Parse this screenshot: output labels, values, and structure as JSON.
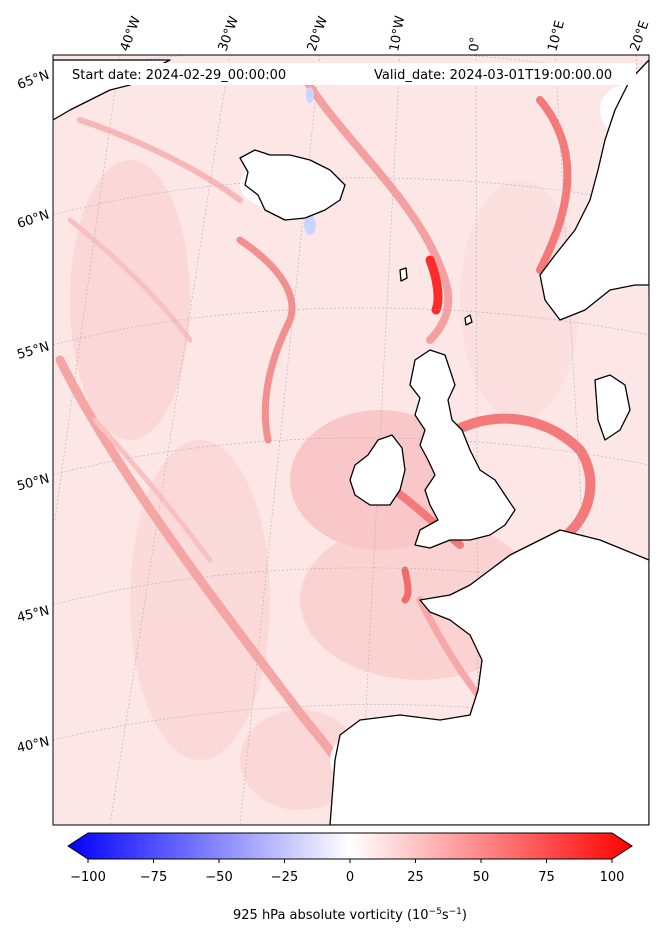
{
  "header": {
    "start_date": "Start date: 2024-02-29_00:00:00",
    "valid_date": "Valid_date: 2024-03-01T19:00:00.00"
  },
  "longitude_labels": [
    "40°W",
    "30°W",
    "20°W",
    "10°W",
    "0°",
    "10°E",
    "20°E"
  ],
  "latitude_labels": [
    "65°N",
    "60°N",
    "55°N",
    "50°N",
    "45°N",
    "40°N"
  ],
  "colorbar": {
    "vmin": -100,
    "vmax": 100,
    "ticks": [
      "−100",
      "−75",
      "−50",
      "−25",
      "0",
      "25",
      "50",
      "75",
      "100"
    ],
    "tick_values": [
      -100,
      -75,
      -50,
      -25,
      0,
      25,
      50,
      75,
      100
    ],
    "title": "925 hPa absolute vorticity (10",
    "title_exp1": "−5",
    "title_mid": "s",
    "title_exp2": "−1",
    "title_end": ")",
    "colors": {
      "neg": "#0000ff",
      "mid": "#ffffff",
      "pos": "#ff0000"
    }
  },
  "colors": {
    "field_base": "#fde6e6",
    "field_light": "#fbd0d0",
    "field_strong": "#f47a7a",
    "field_max": "#ff2a2a",
    "land": "#ffffff",
    "coast": "#000000",
    "gridline": "#b0b0b0"
  }
}
